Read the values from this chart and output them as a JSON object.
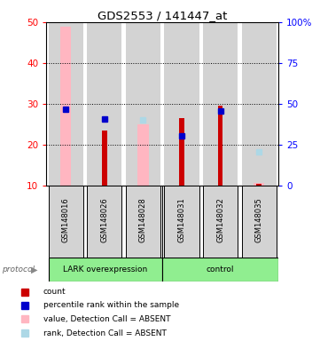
{
  "title": "GDS2553 / 141447_at",
  "samples": [
    "GSM148016",
    "GSM148026",
    "GSM148028",
    "GSM148031",
    "GSM148032",
    "GSM148035"
  ],
  "ylim_left": [
    10,
    50
  ],
  "ylim_right": [
    0,
    100
  ],
  "red_bars": {
    "bottom": [
      10,
      10,
      10,
      10,
      10,
      10
    ],
    "top": [
      10,
      23.5,
      10,
      26.5,
      29.5,
      10.5
    ]
  },
  "pink_bars": {
    "present": [
      true,
      false,
      true,
      false,
      false,
      true
    ],
    "bottom": [
      10,
      0,
      10,
      0,
      0,
      10
    ],
    "top": [
      49,
      0,
      25,
      0,
      0,
      10.8
    ]
  },
  "blue_squares": {
    "x": [
      0,
      1,
      3,
      4
    ],
    "y": [
      28.8,
      26.3,
      22.2,
      28.2
    ]
  },
  "light_blue_squares": {
    "x": [
      2,
      5
    ],
    "y": [
      26.2,
      18.2
    ]
  },
  "left_yticks": [
    10,
    20,
    30,
    40,
    50
  ],
  "right_yticks": [
    0,
    25,
    50,
    75,
    100
  ],
  "right_yticklabels": [
    "0",
    "25",
    "50",
    "75",
    "100%"
  ],
  "red_color": "#cc0000",
  "pink_color": "#ffb6c1",
  "blue_color": "#0000cc",
  "light_blue_color": "#add8e6",
  "gray_color": "#d3d3d3",
  "green_color": "#90EE90",
  "group_divider": 2.5,
  "legend_items": [
    {
      "label": "count",
      "color": "#cc0000"
    },
    {
      "label": "percentile rank within the sample",
      "color": "#0000cc"
    },
    {
      "label": "value, Detection Call = ABSENT",
      "color": "#ffb6c1"
    },
    {
      "label": "rank, Detection Call = ABSENT",
      "color": "#add8e6"
    }
  ]
}
